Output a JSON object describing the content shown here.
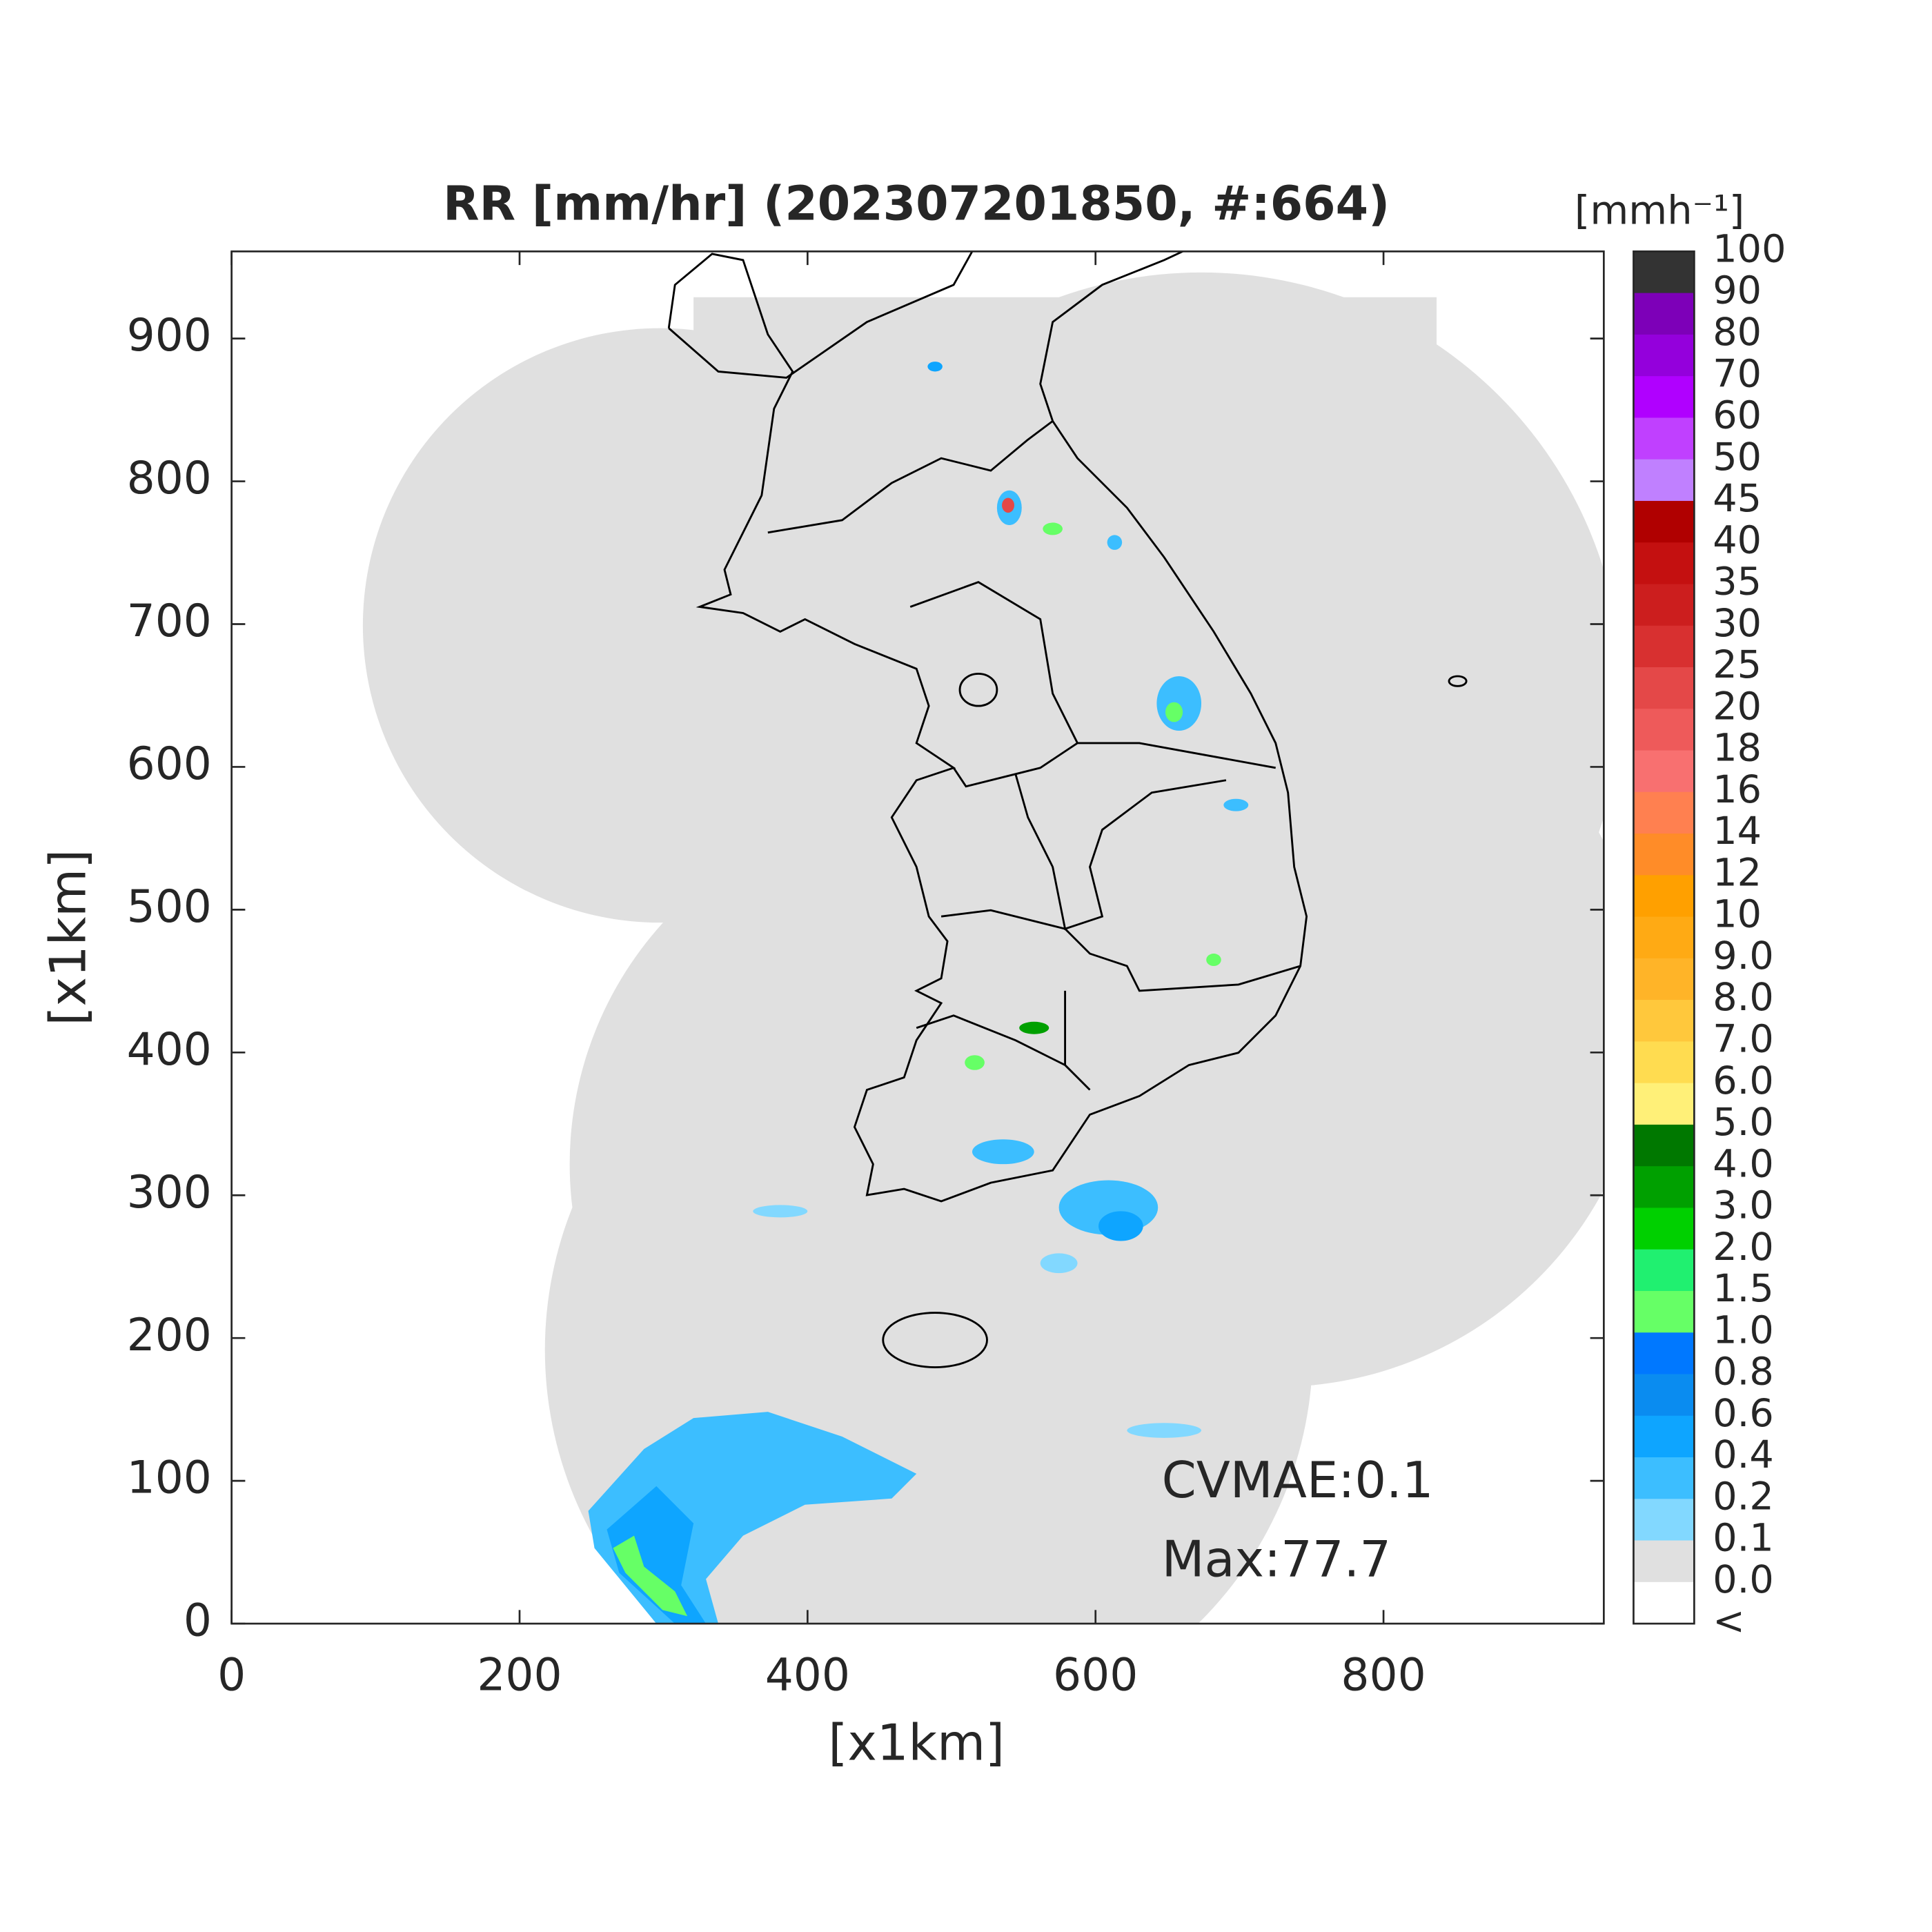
{
  "title": "RR [mm/hr] (202307201850, #:664)",
  "axes": {
    "xlabel": "[x1km]",
    "ylabel": "[x1km]",
    "xlim": [
      0,
      953
    ],
    "ylim": [
      0,
      961
    ],
    "xticks": [
      0,
      200,
      400,
      600,
      800
    ],
    "yticks": [
      0,
      100,
      200,
      300,
      400,
      500,
      600,
      700,
      800,
      900
    ]
  },
  "annotations": [
    "CVMAE:0.1",
    "Max:77.7"
  ],
  "colorbar": {
    "unit": "[mmh⁻¹]",
    "labels": [
      "100",
      "90",
      "80",
      "70",
      "60",
      "50",
      "45",
      "40",
      "35",
      "30",
      "25",
      "20",
      "18",
      "16",
      "14",
      "12",
      "10",
      "9.0",
      "8.0",
      "7.0",
      "6.0",
      "5.0",
      "4.0",
      "3.0",
      "2.0",
      "1.5",
      "1.0",
      "0.8",
      "0.6",
      "0.4",
      "0.2",
      "0.1",
      "0.0",
      "<"
    ],
    "colors": [
      "#333333",
      "#7d00b8",
      "#9400dc",
      "#b000ff",
      "#c040ff",
      "#c080ff",
      "#b00000",
      "#c41010",
      "#cc1e1e",
      "#d83030",
      "#e44848",
      "#ee5a5a",
      "#f87070",
      "#ff8050",
      "#ff8c28",
      "#ffa000",
      "#ffaa14",
      "#ffb428",
      "#ffc83c",
      "#ffdc50",
      "#fff078",
      "#007800",
      "#00a000",
      "#00d000",
      "#20f070",
      "#66ff66",
      "#0078ff",
      "#0a8cf0",
      "#0ea5ff",
      "#3cbeff",
      "#82d8ff",
      "#e0e0e0",
      "#ffffff"
    ]
  }
}
